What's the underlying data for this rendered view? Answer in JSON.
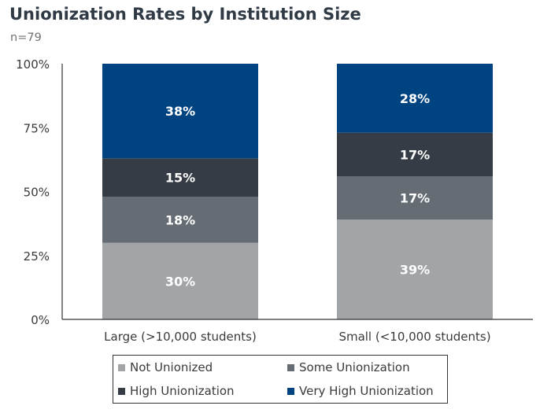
{
  "title": "Unionization Rates by Institution Size",
  "subtitle": "n=79",
  "chart_data": {
    "type": "bar",
    "stacked": true,
    "categories": [
      "Large (>10,000 students)",
      "Small (<10,000 students)"
    ],
    "series": [
      {
        "name": "Not Unionized",
        "values": [
          30,
          39
        ],
        "labels": [
          "30%",
          "39%"
        ],
        "color": "#a2a5a8"
      },
      {
        "name": "Some Unionization",
        "values": [
          18,
          17
        ],
        "labels": [
          "18%",
          "17%"
        ],
        "color": "#656c73"
      },
      {
        "name": "High Unionization",
        "values": [
          15,
          17
        ],
        "labels": [
          "15%",
          "17%"
        ],
        "color": "#353c45"
      },
      {
        "name": "Very High Unionization",
        "values": [
          38,
          28
        ],
        "labels": [
          "38%",
          "28%"
        ],
        "color": "#004381"
      }
    ],
    "y_ticks": [
      "0%",
      "25%",
      "50%",
      "75%",
      "100%"
    ],
    "ylim": [
      0,
      100
    ],
    "grid": false,
    "legend_position": "bottom"
  }
}
